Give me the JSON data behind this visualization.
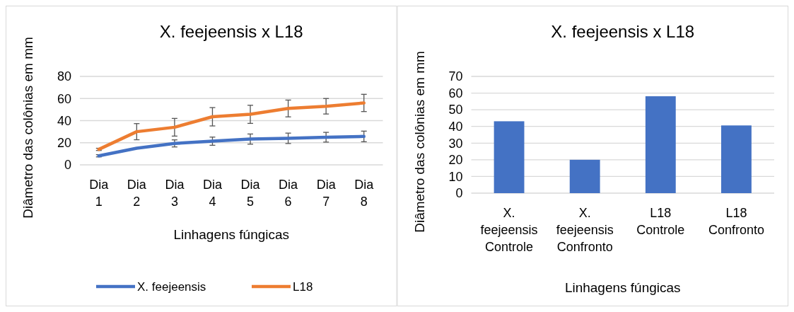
{
  "chart_data": [
    {
      "type": "line",
      "title": "X. feejeensis x L18",
      "xlabel": "Linhagens fúngicas",
      "ylabel": "Diâmetro das colônias em mm",
      "categories": [
        "Dia 1",
        "Dia 2",
        "Dia 3",
        "Dia 4",
        "Dia 5",
        "Dia 6",
        "Dia 7",
        "Dia 8"
      ],
      "ylim": [
        0,
        80
      ],
      "yticks": [
        0,
        20,
        40,
        60,
        80
      ],
      "grid": "y",
      "legend": "bottom",
      "series": [
        {
          "name": "X. feejeensis",
          "color": "#4472c4",
          "values": [
            8.2,
            15,
            19.4,
            21.4,
            23.3,
            24,
            25,
            25.7
          ],
          "errors": [
            1,
            null,
            3.2,
            3.7,
            4.6,
            4.7,
            4.4,
            4.8
          ]
        },
        {
          "name": "L18",
          "color": "#ed7d31",
          "values": [
            14,
            30,
            34,
            43.5,
            45.7,
            51,
            53,
            56
          ],
          "errors": [
            1,
            7.3,
            8,
            8.3,
            8.2,
            7.6,
            7,
            7.8
          ]
        }
      ]
    },
    {
      "type": "bar",
      "title": "X. feejeensis x L18",
      "xlabel": "Linhagens fúngicas",
      "ylabel": "Diâmetro das colônias em mm",
      "categories": [
        "X. feejeensis Controle",
        "X. feejeensis Confronto",
        "L18 Controle",
        "L18 Confronto"
      ],
      "values": [
        43.1,
        20,
        58.1,
        40.6
      ],
      "color": "#4472c4",
      "ylim": [
        0,
        70
      ],
      "yticks": [
        0,
        10,
        20,
        30,
        40,
        50,
        60,
        70
      ],
      "grid": "y"
    }
  ]
}
